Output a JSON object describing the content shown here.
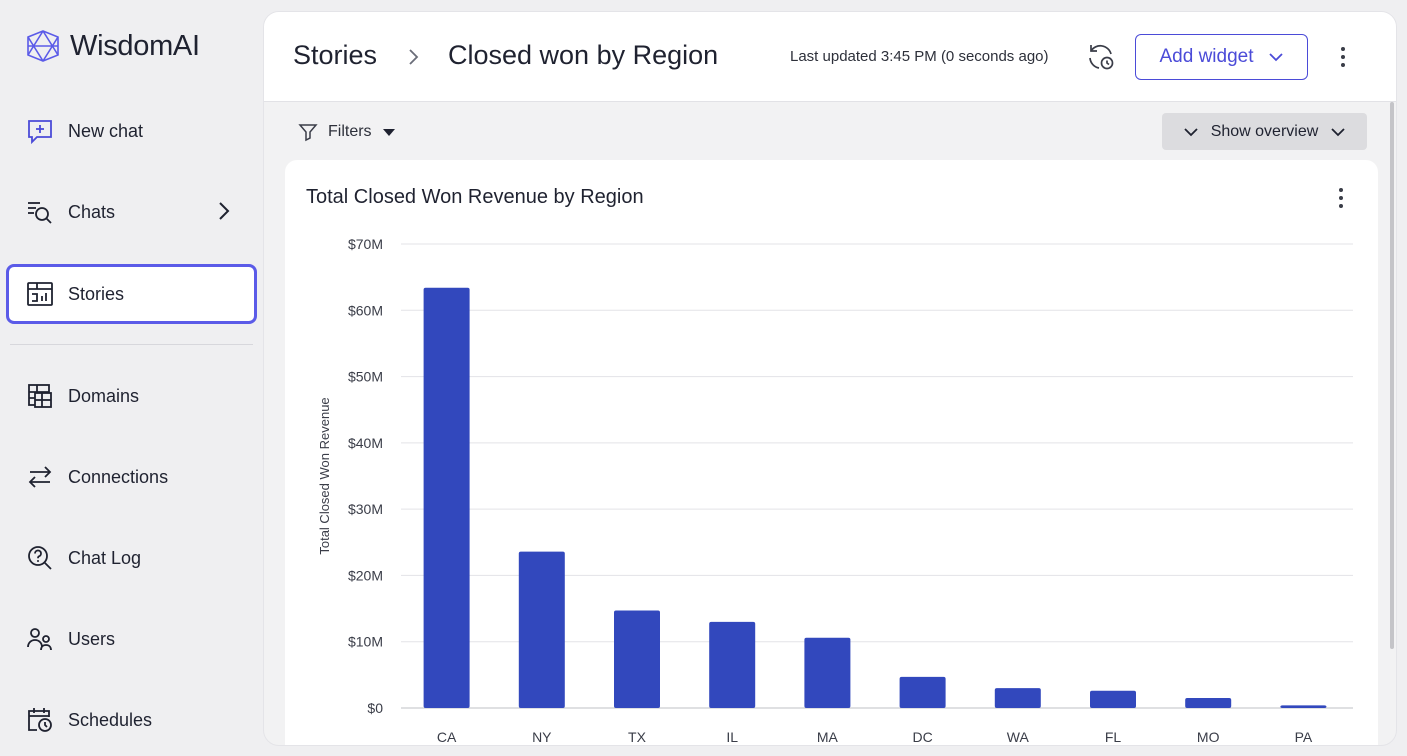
{
  "app": {
    "name": "WisdomAI",
    "accent_color": "#4b4bd8"
  },
  "sidebar": {
    "items": [
      {
        "label": "New chat",
        "icon": "chat-plus-icon"
      },
      {
        "label": "Chats",
        "icon": "chat-search-icon"
      },
      {
        "label": "Stories",
        "icon": "story-chart-icon",
        "active": true
      },
      {
        "label": "Domains",
        "icon": "table-grid-icon"
      },
      {
        "label": "Connections",
        "icon": "arrows-exchange-icon"
      },
      {
        "label": "Chat Log",
        "icon": "magnifier-question-icon"
      },
      {
        "label": "Users",
        "icon": "users-icon"
      },
      {
        "label": "Schedules",
        "icon": "calendar-clock-icon"
      }
    ]
  },
  "header": {
    "breadcrumb_root": "Stories",
    "title": "Closed won by Region",
    "last_updated": "Last updated 3:45 PM (0 seconds ago)",
    "add_widget_label": "Add widget"
  },
  "toolbar": {
    "filters_label": "Filters",
    "show_overview_label": "Show overview"
  },
  "card": {
    "title": "Total Closed Won Revenue by Region"
  },
  "chart_data": {
    "type": "bar",
    "title": "Total Closed Won Revenue by Region",
    "xlabel": "",
    "ylabel": "Total Closed Won Revenue",
    "categories": [
      "CA",
      "NY",
      "TX",
      "IL",
      "MA",
      "DC",
      "WA",
      "FL",
      "MO",
      "PA"
    ],
    "values": [
      63.4,
      23.6,
      14.7,
      13.0,
      10.6,
      4.7,
      3.0,
      2.6,
      1.5,
      0.4
    ],
    "value_unit": "$M",
    "ylim": [
      0,
      70
    ],
    "yticks": [
      "$0",
      "$10M",
      "$20M",
      "$30M",
      "$40M",
      "$50M",
      "$60M",
      "$70M"
    ],
    "grid": true,
    "bar_color": "#3248bd"
  }
}
